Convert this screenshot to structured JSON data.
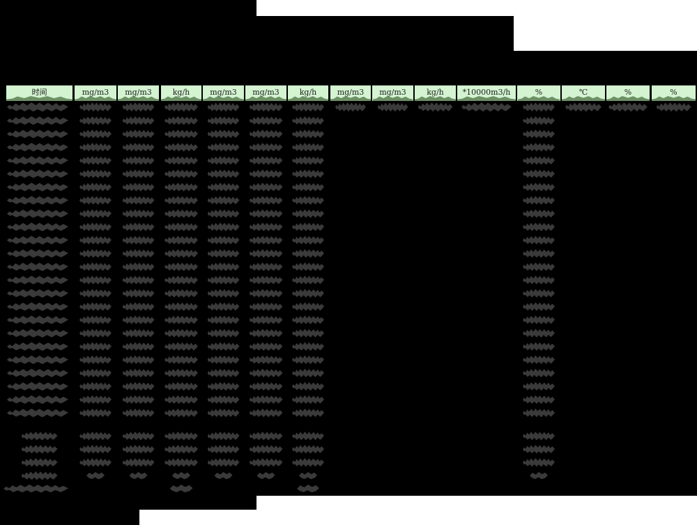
{
  "document": {
    "kind": "redacted-emissions-monitoring-report",
    "table": {
      "header_units": [
        "时间",
        "mg/m3",
        "mg/m3",
        "kg/h",
        "mg/m3",
        "mg/m3",
        "kg/h",
        "mg/m3",
        "mg/m3",
        "kg/h",
        "*10000m3/h",
        "%",
        "℃",
        "%",
        "%"
      ],
      "visible_data_rows": 24,
      "summary_rows": 4,
      "footer_rows": 1
    }
  },
  "colors": {
    "page_bg": "#ffffff",
    "redaction_black": "#000000",
    "header_bg": "#d3f3d1",
    "header_text": "#1c1c1c",
    "header_scribble_green": "#6d9066",
    "value_scribble_gray": "#3a3a3a"
  }
}
